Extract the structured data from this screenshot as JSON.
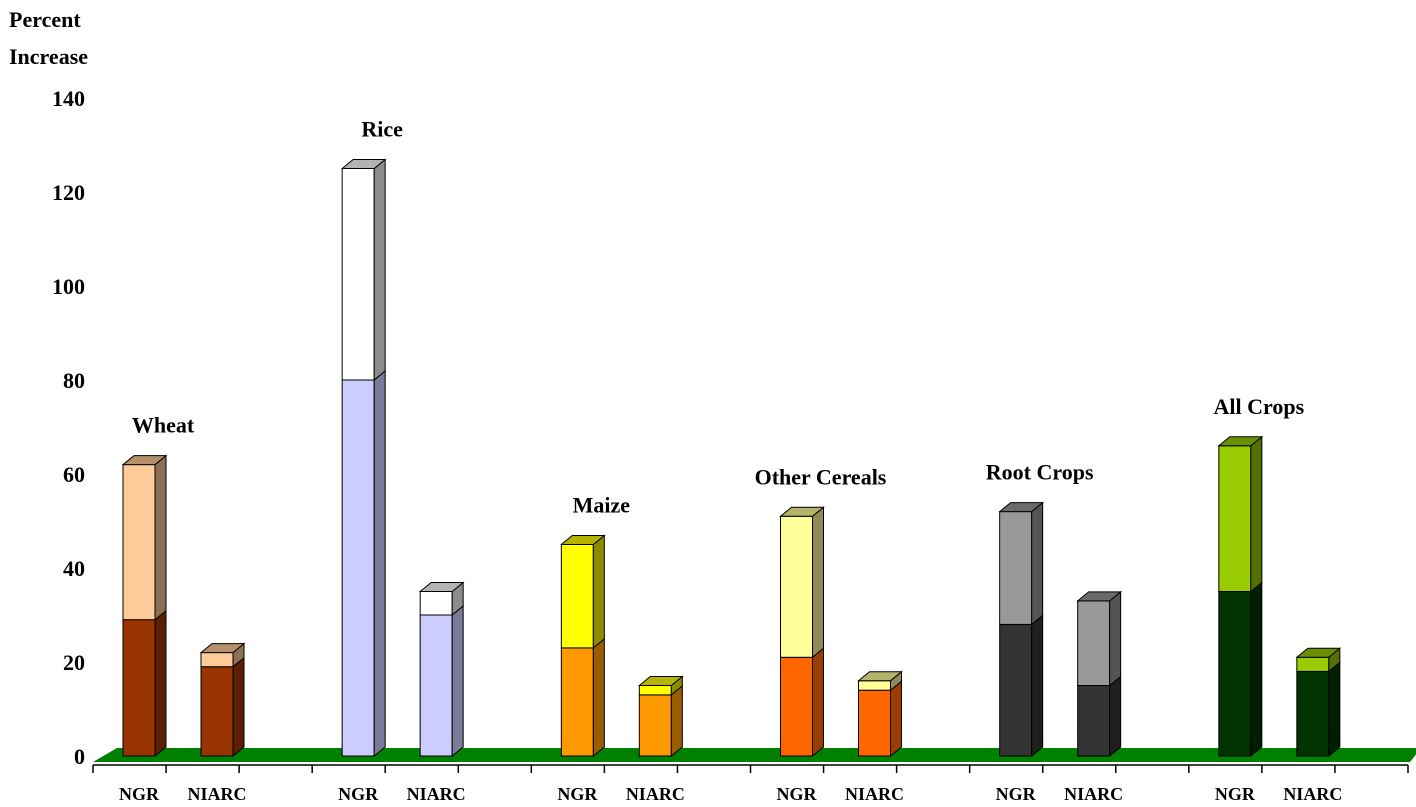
{
  "chart_data": {
    "type": "bar",
    "stacked": true,
    "three_d": true,
    "ylabel_lines": [
      "Percent",
      "Increase"
    ],
    "ylim": [
      0,
      140
    ],
    "yticks": [
      0,
      20,
      40,
      60,
      80,
      100,
      120,
      140
    ],
    "floor_color": "#008000",
    "groups": [
      {
        "name": "Wheat",
        "colors": [
          "#993300",
          "#ffcc99"
        ],
        "bars": [
          {
            "label": "NGR",
            "base": 29,
            "top": 33
          },
          {
            "label": "NIARC",
            "base": 19,
            "top": 3
          }
        ]
      },
      {
        "name": "Rice",
        "colors": [
          "#ccccff",
          "#ffffff"
        ],
        "bars": [
          {
            "label": "NGR",
            "base": 80,
            "top": 45
          },
          {
            "label": "NIARC",
            "base": 30,
            "top": 5
          }
        ]
      },
      {
        "name": "Maize",
        "colors": [
          "#ff9900",
          "#ffff00"
        ],
        "bars": [
          {
            "label": "NGR",
            "base": 23,
            "top": 22
          },
          {
            "label": "NIARC",
            "base": 13,
            "top": 2
          }
        ]
      },
      {
        "name": "Other Cereals",
        "colors": [
          "#ff6600",
          "#ffff99"
        ],
        "bars": [
          {
            "label": "NGR",
            "base": 21,
            "top": 30
          },
          {
            "label": "NIARC",
            "base": 14,
            "top": 2
          }
        ]
      },
      {
        "name": "Root Crops",
        "colors": [
          "#333333",
          "#999999"
        ],
        "bars": [
          {
            "label": "NGR",
            "base": 28,
            "top": 24
          },
          {
            "label": "NIARC",
            "base": 15,
            "top": 18
          }
        ]
      },
      {
        "name": "All Crops",
        "colors": [
          "#003300",
          "#99cc00"
        ],
        "bars": [
          {
            "label": "NGR",
            "base": 35,
            "top": 31
          },
          {
            "label": "NIARC",
            "base": 18,
            "top": 3
          }
        ]
      }
    ]
  }
}
